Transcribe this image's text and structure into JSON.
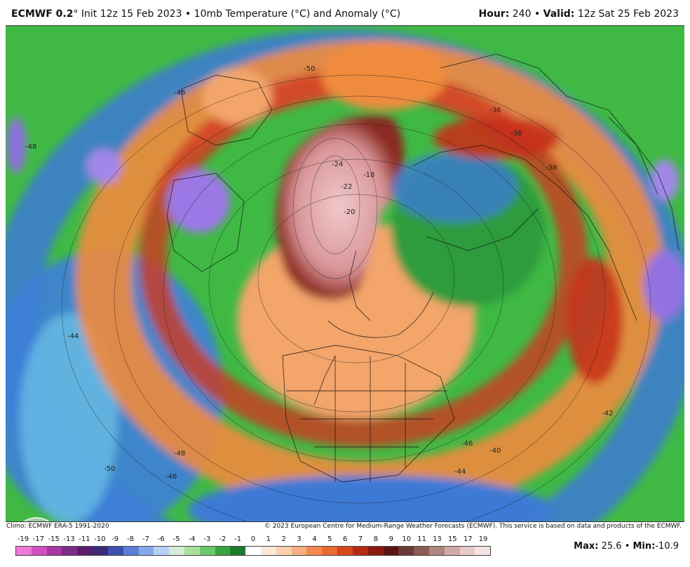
{
  "header": {
    "model": "ECMWF 0.2",
    "deg": "°",
    "run_text": "Init 12z 15 Feb 2023",
    "sep": "•",
    "product": "10mb Temperature (°C) and Anomaly (°C)",
    "hour_label": "Hour:",
    "hour_value": "240",
    "valid_label": "Valid:",
    "valid_value": "12z Sat 25 Feb 2023"
  },
  "map_labels": [
    {
      "id": "c1",
      "text": "-36"
    },
    {
      "id": "c2",
      "text": "-36"
    },
    {
      "id": "c3",
      "text": "-38"
    },
    {
      "id": "c4",
      "text": "-24"
    },
    {
      "id": "c5",
      "text": "-22"
    },
    {
      "id": "c6",
      "text": "-18"
    },
    {
      "id": "c7",
      "text": "-20"
    },
    {
      "id": "c8",
      "text": "-50"
    },
    {
      "id": "c9",
      "text": "-46"
    },
    {
      "id": "c10",
      "text": "-48"
    },
    {
      "id": "c11",
      "text": "-44"
    },
    {
      "id": "c12",
      "text": "-42"
    },
    {
      "id": "c13",
      "text": "-40"
    },
    {
      "id": "c14",
      "text": "-46"
    },
    {
      "id": "c15",
      "text": "-44"
    },
    {
      "id": "c16",
      "text": "-50"
    },
    {
      "id": "c17",
      "text": "-46"
    },
    {
      "id": "c18",
      "text": "-48"
    }
  ],
  "footer": {
    "climo": "Climo: ECMWF ERA-5 1991-2020",
    "copyright": "© 2023 European Centre for Medium-Range Weather Forecasts (ECMWF). This service is based on data and products of the ECMWF."
  },
  "legend": {
    "labels": [
      "-19",
      "-17",
      "-15",
      "-13",
      "-11",
      "-10",
      "-9",
      "-8",
      "-7",
      "-6",
      "-5",
      "-4",
      "-3",
      "-2",
      "-1",
      "0",
      "1",
      "2",
      "3",
      "4",
      "5",
      "6",
      "7",
      "8",
      "9",
      "10",
      "11",
      "13",
      "15",
      "17",
      "19"
    ],
    "colors": [
      "#f07ad8",
      "#d24fc4",
      "#a838a8",
      "#7d2b86",
      "#5a1e6a",
      "#3b2a7a",
      "#3f4fb0",
      "#5a7fd8",
      "#86a9ec",
      "#b8d0f4",
      "#d6ecd6",
      "#a9e09a",
      "#6cc86a",
      "#3aa53e",
      "#1f7a2a",
      "#ffffff",
      "#fde9d9",
      "#fbcfb0",
      "#f8ae82",
      "#f3894f",
      "#ea6a30",
      "#d9461d",
      "#b42a15",
      "#8a1a10",
      "#5c1212",
      "#6b3a36",
      "#8c5a55",
      "#b08580",
      "#cfaaa6",
      "#e6cbc8",
      "#f4e4e2"
    ]
  },
  "stats": {
    "max_label": "Max:",
    "max_value": "25.6",
    "sep": "•",
    "min_label": "Min:",
    "min_value": "-10.9"
  },
  "colors": {
    "green": "#3fbf45",
    "blue": "#3c78d8",
    "orange": "#f08b3e",
    "red": "#c8301a",
    "pink": "#e7b6b8",
    "purple": "#8f6fe0"
  }
}
